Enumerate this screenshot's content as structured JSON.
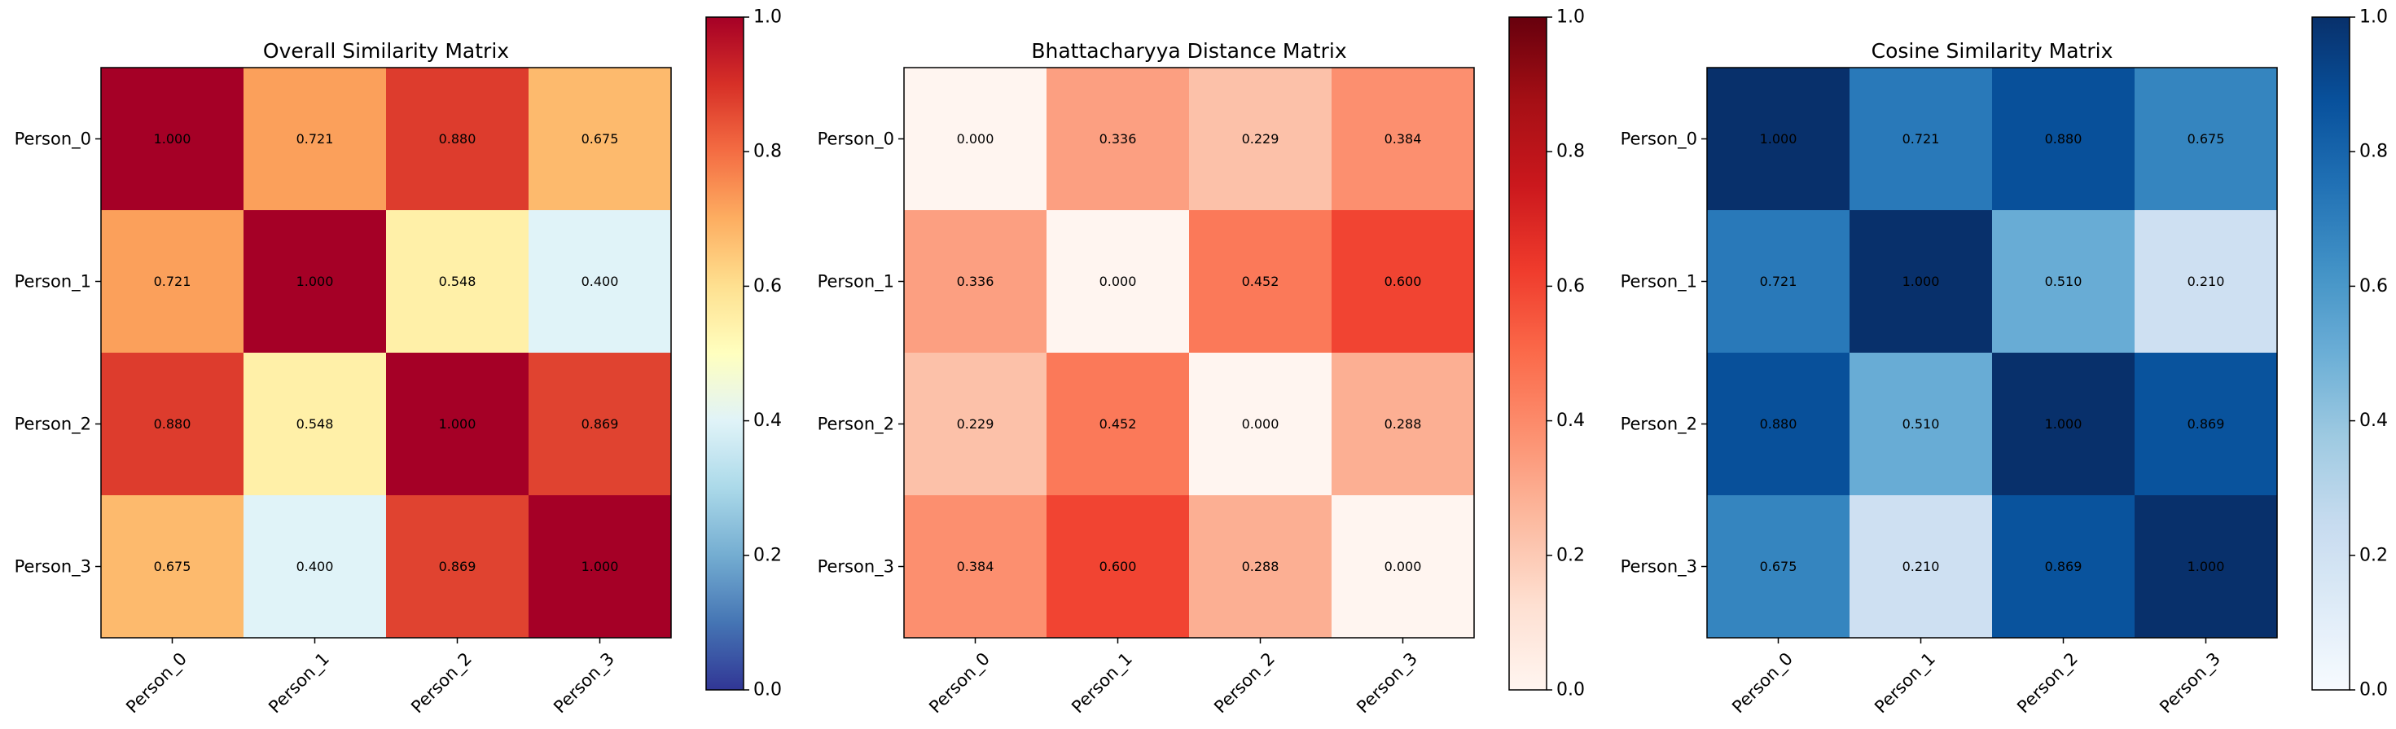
{
  "chart_data": [
    {
      "type": "heatmap",
      "title": "Overall Similarity Matrix",
      "colormap": "RdYlBu_r",
      "x_labels": [
        "Person_0",
        "Person_1",
        "Person_2",
        "Person_3"
      ],
      "y_labels": [
        "Person_0",
        "Person_1",
        "Person_2",
        "Person_3"
      ],
      "values": [
        [
          1.0,
          0.721,
          0.88,
          0.675
        ],
        [
          0.721,
          1.0,
          0.548,
          0.4
        ],
        [
          0.88,
          0.548,
          1.0,
          0.869
        ],
        [
          0.675,
          0.4,
          0.869,
          1.0
        ]
      ],
      "cell_text": [
        [
          "1.000",
          "0.721",
          "0.880",
          "0.675"
        ],
        [
          "0.721",
          "1.000",
          "0.548",
          "0.400"
        ],
        [
          "0.880",
          "0.548",
          "1.000",
          "0.869"
        ],
        [
          "0.675",
          "0.400",
          "0.869",
          "1.000"
        ]
      ],
      "vmin": 0,
      "vmax": 1,
      "colorbar_ticks": [
        "0.0",
        "0.2",
        "0.4",
        "0.6",
        "0.8",
        "1.0"
      ]
    },
    {
      "type": "heatmap",
      "title": "Bhattacharyya Distance Matrix",
      "colormap": "Reds",
      "x_labels": [
        "Person_0",
        "Person_1",
        "Person_2",
        "Person_3"
      ],
      "y_labels": [
        "Person_0",
        "Person_1",
        "Person_2",
        "Person_3"
      ],
      "values": [
        [
          0.0,
          0.336,
          0.229,
          0.384
        ],
        [
          0.336,
          0.0,
          0.452,
          0.6
        ],
        [
          0.229,
          0.452,
          0.0,
          0.288
        ],
        [
          0.384,
          0.6,
          0.288,
          0.0
        ]
      ],
      "cell_text": [
        [
          "0.000",
          "0.336",
          "0.229",
          "0.384"
        ],
        [
          "0.336",
          "0.000",
          "0.452",
          "0.600"
        ],
        [
          "0.229",
          "0.452",
          "0.000",
          "0.288"
        ],
        [
          "0.384",
          "0.600",
          "0.288",
          "0.000"
        ]
      ],
      "vmin": 0,
      "vmax": 1,
      "colorbar_ticks": [
        "0.0",
        "0.2",
        "0.4",
        "0.6",
        "0.8",
        "1.0"
      ]
    },
    {
      "type": "heatmap",
      "title": "Cosine Similarity Matrix",
      "colormap": "Blues",
      "x_labels": [
        "Person_0",
        "Person_1",
        "Person_2",
        "Person_3"
      ],
      "y_labels": [
        "Person_0",
        "Person_1",
        "Person_2",
        "Person_3"
      ],
      "values": [
        [
          1.0,
          0.721,
          0.88,
          0.675
        ],
        [
          0.721,
          1.0,
          0.51,
          0.21
        ],
        [
          0.88,
          0.51,
          1.0,
          0.869
        ],
        [
          0.675,
          0.21,
          0.869,
          1.0
        ]
      ],
      "cell_text": [
        [
          "1.000",
          "0.721",
          "0.880",
          "0.675"
        ],
        [
          "0.721",
          "1.000",
          "0.510",
          "0.210"
        ],
        [
          "0.880",
          "0.510",
          "1.000",
          "0.869"
        ],
        [
          "0.675",
          "0.210",
          "0.869",
          "1.000"
        ]
      ],
      "vmin": 0,
      "vmax": 1,
      "colorbar_ticks": [
        "0.0",
        "0.2",
        "0.4",
        "0.6",
        "0.8",
        "1.0"
      ]
    }
  ]
}
